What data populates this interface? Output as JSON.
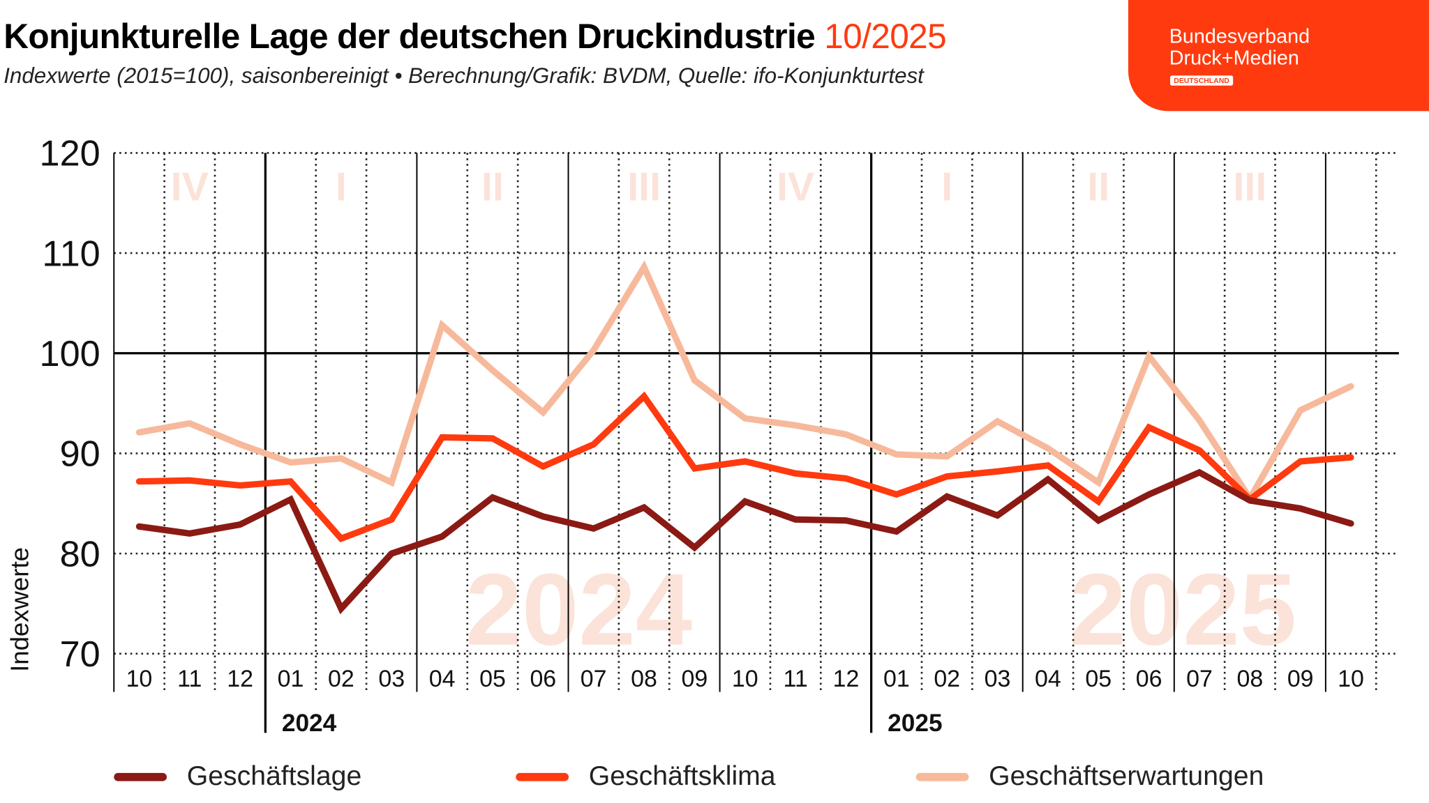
{
  "header": {
    "title": "Konjunkturelle Lage der deutschen Druckindustrie",
    "title_highlight": "10/2025",
    "subtitle": "Indexwerte (2015=100), saisonbereinigt • Berechnung/Grafik: BVDM, Quelle: ifo-Konjunkturtest"
  },
  "logo": {
    "line1": "Bundesverband",
    "line2": "Druck+Medien",
    "badge": "DEUTSCHLAND"
  },
  "colors": {
    "accent": "#ff3a0f",
    "lage": "#8b1a14",
    "klima": "#ff3a0f",
    "erwartungen": "#f7b99b",
    "watermark": "#fbe3d9"
  },
  "chart_data": {
    "type": "line",
    "ylabel": "Indexwerte",
    "ylim": [
      70,
      120
    ],
    "yticks": [
      "70",
      "80",
      "90",
      "100",
      "110",
      "120"
    ],
    "categories": [
      "10",
      "11",
      "12",
      "01",
      "02",
      "03",
      "04",
      "05",
      "06",
      "07",
      "08",
      "09",
      "10",
      "11",
      "12",
      "01",
      "02",
      "03",
      "04",
      "05",
      "06",
      "07",
      "08",
      "09",
      "10"
    ],
    "year_labels": [
      {
        "label": "2024",
        "start_index": 3
      },
      {
        "label": "2025",
        "start_index": 15
      }
    ],
    "quarter_labels": [
      "IV",
      "I",
      "II",
      "III",
      "IV",
      "I",
      "II",
      "III"
    ],
    "watermarks": [
      "2024",
      "2025"
    ],
    "reference_line": 100,
    "grid": true,
    "legend_position": "bottom",
    "series": [
      {
        "name": "Geschäftslage",
        "color": "#8b1a14",
        "values": [
          82.7,
          82.0,
          82.9,
          85.4,
          74.5,
          80.0,
          81.7,
          85.6,
          83.7,
          82.5,
          84.6,
          80.6,
          85.2,
          83.4,
          83.3,
          82.2,
          85.7,
          83.8,
          87.4,
          83.3,
          85.9,
          88.1,
          85.3,
          84.5,
          83.0
        ]
      },
      {
        "name": "Geschäftsklima",
        "color": "#ff3a0f",
        "values": [
          87.2,
          87.3,
          86.8,
          87.2,
          81.5,
          83.4,
          91.6,
          91.5,
          88.7,
          90.9,
          95.7,
          88.5,
          89.2,
          88.0,
          87.5,
          85.9,
          87.7,
          88.2,
          88.8,
          85.2,
          92.6,
          90.3,
          85.4,
          89.2,
          89.6
        ]
      },
      {
        "name": "Geschäftserwartungen",
        "color": "#f7b99b",
        "values": [
          92.1,
          93.0,
          90.9,
          89.1,
          89.5,
          87.1,
          102.8,
          98.3,
          94.1,
          100.3,
          108.6,
          97.3,
          93.5,
          92.8,
          91.9,
          89.9,
          89.7,
          93.2,
          90.5,
          87.1,
          99.7,
          93.3,
          85.5,
          94.3,
          96.7
        ]
      }
    ]
  }
}
